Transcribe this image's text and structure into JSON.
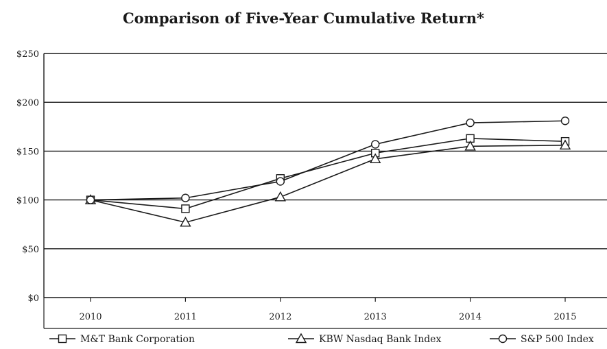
{
  "chart_data": {
    "type": "line",
    "title": "Comparison of Five-Year Cumulative Return*",
    "xlabel": "",
    "ylabel": "",
    "categories": [
      "2010",
      "2011",
      "2012",
      "2013",
      "2014",
      "2015"
    ],
    "y_ticks": [
      "$0",
      "$50",
      "$100",
      "$150",
      "$200",
      "$250"
    ],
    "ylim": [
      0,
      250
    ],
    "grid": "horizontal",
    "legend_position": "bottom",
    "series": [
      {
        "name": "M&T Bank Corporation",
        "marker": "square",
        "values": [
          100,
          91,
          122,
          148,
          163,
          160
        ]
      },
      {
        "name": "KBW Nasdaq Bank Index",
        "marker": "triangle",
        "values": [
          100,
          77,
          103,
          142,
          155,
          156
        ]
      },
      {
        "name": "S&P 500 Index",
        "marker": "circle",
        "values": [
          100,
          102,
          119,
          157,
          179,
          181
        ]
      }
    ]
  }
}
